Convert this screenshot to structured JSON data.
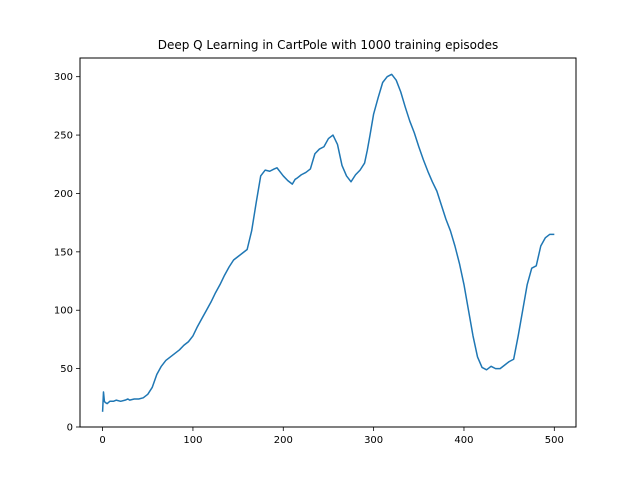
{
  "chart_data": {
    "type": "line",
    "title": "Deep Q Learning in CartPole with 1000 training episodes",
    "xlabel": "",
    "ylabel": "",
    "xlim": [
      -25,
      524
    ],
    "ylim": [
      0,
      316
    ],
    "xticks": [
      0,
      100,
      200,
      300,
      400,
      500
    ],
    "yticks": [
      0,
      50,
      100,
      150,
      200,
      250,
      300
    ],
    "grid": false,
    "line_color": "#1f77b4",
    "series": [
      {
        "x": [
          0,
          1,
          2,
          3,
          5,
          8,
          10,
          12,
          15,
          20,
          25,
          28,
          30,
          35,
          40,
          45,
          50,
          55,
          60,
          65,
          70,
          75,
          80,
          85,
          90,
          95,
          100,
          105,
          110,
          115,
          120,
          125,
          130,
          135,
          140,
          145,
          150,
          155,
          160,
          165,
          170,
          175,
          180,
          185,
          190,
          193,
          197,
          200,
          205,
          210,
          213,
          215,
          220,
          225,
          230,
          235,
          240,
          245,
          250,
          255,
          260,
          265,
          270,
          275,
          280,
          285,
          290,
          293,
          296,
          300,
          305,
          310,
          315,
          320,
          325,
          330,
          335,
          340,
          345,
          350,
          355,
          360,
          365,
          370,
          375,
          380,
          385,
          390,
          395,
          400,
          405,
          410,
          415,
          420,
          425,
          430,
          435,
          440,
          445,
          450,
          455,
          460,
          465,
          470,
          475,
          480,
          485,
          490,
          495,
          500
        ],
        "y": [
          13,
          30,
          22,
          21,
          20,
          22,
          22,
          22,
          23,
          22,
          23,
          24,
          23,
          24,
          24,
          25,
          28,
          34,
          45,
          52,
          57,
          60,
          63,
          66,
          70,
          73,
          78,
          86,
          93,
          100,
          107,
          115,
          122,
          130,
          137,
          143,
          146,
          149,
          152,
          168,
          192,
          215,
          220,
          219,
          221,
          222,
          218,
          215,
          211,
          208,
          212,
          213,
          216,
          218,
          221,
          234,
          238,
          240,
          247,
          250,
          242,
          224,
          215,
          210,
          216,
          220,
          226,
          237,
          250,
          268,
          282,
          295,
          300,
          302,
          297,
          287,
          274,
          262,
          252,
          240,
          229,
          219,
          210,
          202,
          190,
          178,
          168,
          155,
          140,
          122,
          100,
          78,
          60,
          51,
          49,
          52,
          50,
          50,
          53,
          56,
          58,
          78,
          100,
          122,
          136,
          138,
          155,
          162,
          165,
          165
        ]
      }
    ]
  }
}
